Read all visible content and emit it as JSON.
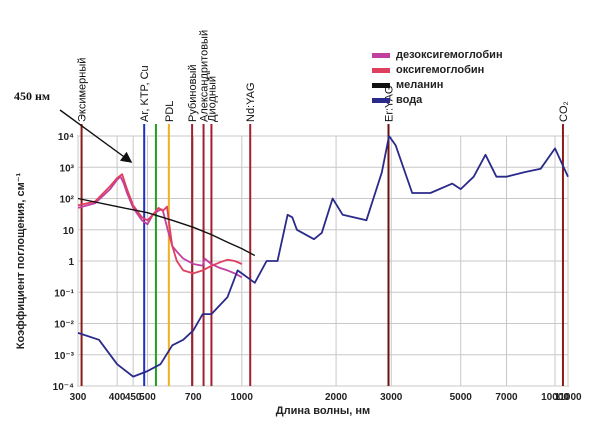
{
  "chart_data": {
    "type": "line",
    "xlabel": "Длина волны, нм",
    "ylabel": "Коэффициент поглощения, см⁻¹",
    "xscale": "log",
    "yscale": "log",
    "xlim": [
      300,
      11000
    ],
    "ylim": [
      0.0001,
      10000
    ],
    "grid": true,
    "legend_position": "top-right",
    "x_ticks": [
      {
        "value": 300,
        "label": "300"
      },
      {
        "value": 400,
        "label": "400"
      },
      {
        "value": 450,
        "label": "450"
      },
      {
        "value": 500,
        "label": "500"
      },
      {
        "value": 700,
        "label": "700"
      },
      {
        "value": 1000,
        "label": "1000"
      },
      {
        "value": 2000,
        "label": "2000"
      },
      {
        "value": 3000,
        "label": "3000"
      },
      {
        "value": 5000,
        "label": "5000"
      },
      {
        "value": 7000,
        "label": "7000"
      },
      {
        "value": 10000,
        "label": "10000"
      },
      {
        "value": 11000,
        "label": "11000"
      }
    ],
    "y_ticks": [
      {
        "value": 10000,
        "label": "10⁴"
      },
      {
        "value": 1000,
        "label": "10³"
      },
      {
        "value": 100,
        "label": "10²"
      },
      {
        "value": 10,
        "label": "10"
      },
      {
        "value": 1,
        "label": "1"
      },
      {
        "value": 0.1,
        "label": "10⁻¹"
      },
      {
        "value": 0.01,
        "label": "10⁻²"
      },
      {
        "value": 0.001,
        "label": "10⁻³"
      },
      {
        "value": 0.0001,
        "label": "10⁻⁴"
      }
    ],
    "series": [
      {
        "name": "дезоксигемоглобин",
        "color": "#c040a0",
        "x": [
          300,
          340,
          380,
          400,
          410,
          420,
          430,
          450,
          480,
          500,
          520,
          540,
          555,
          560,
          580,
          600,
          620,
          650,
          700,
          750,
          760,
          800,
          850,
          900,
          950,
          1000
        ],
        "y": [
          50,
          70,
          200,
          400,
          500,
          300,
          150,
          50,
          20,
          15,
          30,
          40,
          45,
          40,
          10,
          3,
          2,
          1.2,
          0.8,
          0.7,
          1.2,
          0.8,
          0.6,
          0.5,
          0.4,
          0.3
        ]
      },
      {
        "name": "оксигемоглобин",
        "color": "#e04060",
        "x": [
          300,
          340,
          380,
          400,
          415,
          430,
          450,
          480,
          500,
          520,
          542,
          560,
          577,
          590,
          600,
          620,
          650,
          700,
          750,
          800,
          850,
          900,
          950,
          1000
        ],
        "y": [
          60,
          80,
          250,
          450,
          600,
          200,
          60,
          25,
          20,
          30,
          50,
          40,
          55,
          10,
          3,
          1,
          0.5,
          0.4,
          0.5,
          0.7,
          0.9,
          1.1,
          1.0,
          0.8
        ]
      },
      {
        "name": "меланин",
        "color": "#111111",
        "x": [
          300,
          400,
          500,
          600,
          700,
          800,
          900,
          1000,
          1100
        ],
        "y": [
          100,
          55,
          35,
          20,
          12,
          7,
          4,
          2.5,
          1.5
        ]
      },
      {
        "name": "вода",
        "color": "#2a2a8a",
        "x": [
          300,
          350,
          400,
          450,
          500,
          550,
          600,
          650,
          700,
          750,
          800,
          900,
          970,
          1000,
          1100,
          1200,
          1300,
          1400,
          1450,
          1500,
          1700,
          1800,
          1950,
          2100,
          2500,
          2800,
          2950,
          3100,
          3500,
          4000,
          4700,
          5000,
          5500,
          6000,
          6500,
          7000,
          8000,
          9000,
          10000,
          11000
        ],
        "y": [
          0.005,
          0.003,
          0.0005,
          0.0002,
          0.0003,
          0.0005,
          0.002,
          0.003,
          0.006,
          0.02,
          0.02,
          0.07,
          0.5,
          0.4,
          0.2,
          1,
          1,
          30,
          25,
          10,
          5,
          8,
          100,
          30,
          20,
          700,
          10000,
          5000,
          150,
          150,
          300,
          200,
          500,
          2500,
          500,
          500,
          700,
          900,
          4000,
          500
        ]
      }
    ],
    "lasers": [
      {
        "label": "Эксимерный",
        "x": 308,
        "color": "#8b1a1a"
      },
      {
        "label": "Ar, KTP, Cu",
        "x": 488,
        "color": "#2030c0"
      },
      {
        "label": "",
        "x": 532,
        "color": "#20a020"
      },
      {
        "label": "PDL",
        "x": 585,
        "color": "#f0b020"
      },
      {
        "label": "Рубиновый",
        "x": 694,
        "color": "#a02030"
      },
      {
        "label": "Александритовый",
        "x": 755,
        "color": "#a02030"
      },
      {
        "label": "Диодный",
        "x": 800,
        "color": "#a02030"
      },
      {
        "label": "Nd:YAG",
        "x": 1064,
        "color": "#a02030"
      },
      {
        "label": "Er:YAG",
        "x": 2940,
        "color": "#6a1010"
      },
      {
        "label": "CO₂",
        "x": 10600,
        "color": "#8b1a1a"
      }
    ],
    "annotations": [
      {
        "text": "450 нм",
        "x": 450
      }
    ]
  }
}
